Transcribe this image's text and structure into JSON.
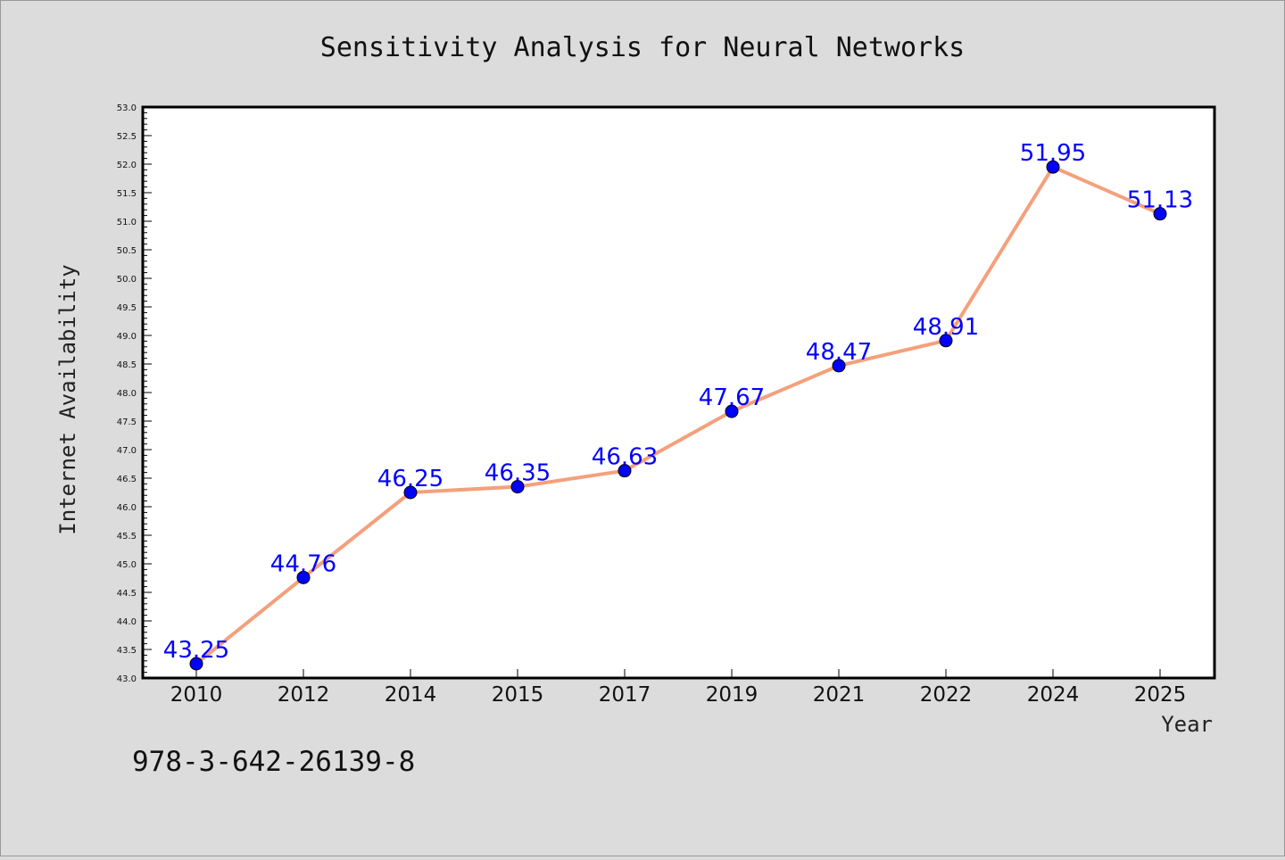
{
  "chart_data": {
    "type": "line",
    "title": "Sensitivity Analysis for Neural Networks",
    "xlabel": "Year",
    "ylabel": "Internet Availability",
    "categories": [
      "2010",
      "2012",
      "2014",
      "2015",
      "2017",
      "2019",
      "2021",
      "2022",
      "2024",
      "2025"
    ],
    "values": [
      43.25,
      44.76,
      46.25,
      46.35,
      46.63,
      47.67,
      48.47,
      48.91,
      51.95,
      51.13
    ],
    "data_labels": [
      "43.25",
      "44.76",
      "46.25",
      "46.35",
      "46.63",
      "47.67",
      "48.47",
      "48.91",
      "51.95",
      "51.13"
    ],
    "ylim": [
      43.0,
      53.0
    ],
    "yticks": [
      "43.0",
      "43.5",
      "44.0",
      "44.5",
      "45.0",
      "45.5",
      "46.0",
      "46.5",
      "47.0",
      "47.5",
      "48.0",
      "48.5",
      "49.0",
      "49.5",
      "50.0",
      "50.5",
      "51.0",
      "51.5",
      "52.0",
      "52.5",
      "53.0"
    ],
    "grid": false,
    "line_color": "#f4a07c",
    "marker_color": "#0000ff",
    "label_color": "#0000ff"
  },
  "footnote": "978-3-642-26139-8"
}
